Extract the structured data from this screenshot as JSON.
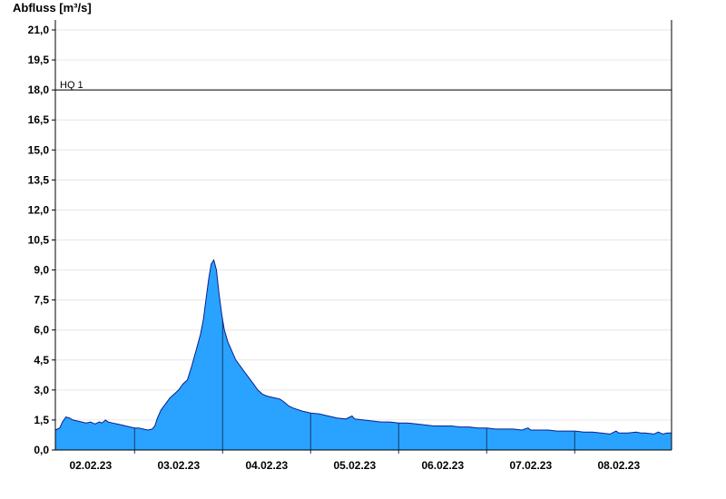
{
  "chart_data": {
    "type": "area",
    "title": "",
    "ylabel": "Abfluss [m³/s]",
    "xlabel": "",
    "ylim": [
      0,
      21.5
    ],
    "yticks": [
      "0,0",
      "1,5",
      "3,0",
      "4,5",
      "6,0",
      "7,5",
      "9,0",
      "10,5",
      "12,0",
      "13,5",
      "15,0",
      "16,5",
      "18,0",
      "19,5",
      "21,0"
    ],
    "yticks_values": [
      0,
      1.5,
      3,
      4.5,
      6,
      7.5,
      9,
      10.5,
      12,
      13.5,
      15,
      16.5,
      18,
      19.5,
      21
    ],
    "xlim_days": [
      1.6,
      8.6
    ],
    "xticks": [
      {
        "label": "02.02.23",
        "day": 2.0
      },
      {
        "label": "03.02.23",
        "day": 3.0
      },
      {
        "label": "04.02.23",
        "day": 4.0
      },
      {
        "label": "05.02.23",
        "day": 5.0
      },
      {
        "label": "06.02.23",
        "day": 6.0
      },
      {
        "label": "07.02.23",
        "day": 7.0
      },
      {
        "label": "08.02.23",
        "day": 8.0
      }
    ],
    "day_separators": [
      2.5,
      3.5,
      4.5,
      5.5,
      6.5,
      7.5
    ],
    "grid": true,
    "reference_line": {
      "label": "HQ 1",
      "value": 18.0
    },
    "series": [
      {
        "fill_color": "#29a3ff",
        "line_color": "#0a1f8f",
        "points": [
          [
            1.6,
            1.0
          ],
          [
            1.65,
            1.1
          ],
          [
            1.68,
            1.4
          ],
          [
            1.72,
            1.65
          ],
          [
            1.76,
            1.6
          ],
          [
            1.8,
            1.5
          ],
          [
            1.85,
            1.45
          ],
          [
            1.9,
            1.4
          ],
          [
            1.95,
            1.35
          ],
          [
            2.0,
            1.4
          ],
          [
            2.05,
            1.3
          ],
          [
            2.1,
            1.4
          ],
          [
            2.13,
            1.35
          ],
          [
            2.17,
            1.5
          ],
          [
            2.2,
            1.4
          ],
          [
            2.25,
            1.35
          ],
          [
            2.3,
            1.3
          ],
          [
            2.35,
            1.25
          ],
          [
            2.4,
            1.2
          ],
          [
            2.45,
            1.15
          ],
          [
            2.5,
            1.1
          ],
          [
            2.55,
            1.1
          ],
          [
            2.6,
            1.05
          ],
          [
            2.65,
            1.0
          ],
          [
            2.7,
            1.05
          ],
          [
            2.73,
            1.2
          ],
          [
            2.76,
            1.6
          ],
          [
            2.8,
            2.0
          ],
          [
            2.85,
            2.3
          ],
          [
            2.9,
            2.6
          ],
          [
            2.95,
            2.8
          ],
          [
            3.0,
            3.0
          ],
          [
            3.05,
            3.3
          ],
          [
            3.1,
            3.5
          ],
          [
            3.15,
            4.2
          ],
          [
            3.2,
            5.0
          ],
          [
            3.25,
            5.8
          ],
          [
            3.28,
            6.5
          ],
          [
            3.31,
            7.5
          ],
          [
            3.34,
            8.5
          ],
          [
            3.37,
            9.3
          ],
          [
            3.4,
            9.5
          ],
          [
            3.43,
            9.0
          ],
          [
            3.46,
            7.8
          ],
          [
            3.49,
            6.8
          ],
          [
            3.52,
            6.0
          ],
          [
            3.56,
            5.4
          ],
          [
            3.6,
            5.0
          ],
          [
            3.65,
            4.5
          ],
          [
            3.7,
            4.2
          ],
          [
            3.75,
            3.9
          ],
          [
            3.8,
            3.6
          ],
          [
            3.85,
            3.3
          ],
          [
            3.9,
            3.0
          ],
          [
            3.95,
            2.8
          ],
          [
            4.0,
            2.7
          ],
          [
            4.05,
            2.65
          ],
          [
            4.1,
            2.6
          ],
          [
            4.15,
            2.55
          ],
          [
            4.2,
            2.4
          ],
          [
            4.25,
            2.2
          ],
          [
            4.3,
            2.1
          ],
          [
            4.4,
            1.95
          ],
          [
            4.5,
            1.85
          ],
          [
            4.6,
            1.8
          ],
          [
            4.7,
            1.7
          ],
          [
            4.8,
            1.6
          ],
          [
            4.9,
            1.55
          ],
          [
            4.97,
            1.7
          ],
          [
            5.0,
            1.55
          ],
          [
            5.1,
            1.5
          ],
          [
            5.2,
            1.45
          ],
          [
            5.3,
            1.4
          ],
          [
            5.4,
            1.4
          ],
          [
            5.5,
            1.35
          ],
          [
            5.6,
            1.35
          ],
          [
            5.7,
            1.3
          ],
          [
            5.8,
            1.25
          ],
          [
            5.9,
            1.2
          ],
          [
            6.0,
            1.2
          ],
          [
            6.1,
            1.2
          ],
          [
            6.2,
            1.15
          ],
          [
            6.3,
            1.15
          ],
          [
            6.4,
            1.1
          ],
          [
            6.5,
            1.1
          ],
          [
            6.6,
            1.05
          ],
          [
            6.7,
            1.05
          ],
          [
            6.8,
            1.05
          ],
          [
            6.9,
            1.0
          ],
          [
            6.97,
            1.1
          ],
          [
            7.0,
            1.0
          ],
          [
            7.1,
            1.0
          ],
          [
            7.2,
            1.0
          ],
          [
            7.3,
            0.95
          ],
          [
            7.4,
            0.95
          ],
          [
            7.5,
            0.95
          ],
          [
            7.6,
            0.9
          ],
          [
            7.7,
            0.9
          ],
          [
            7.8,
            0.85
          ],
          [
            7.9,
            0.8
          ],
          [
            7.97,
            0.95
          ],
          [
            8.0,
            0.85
          ],
          [
            8.1,
            0.85
          ],
          [
            8.2,
            0.9
          ],
          [
            8.25,
            0.85
          ],
          [
            8.3,
            0.85
          ],
          [
            8.4,
            0.8
          ],
          [
            8.45,
            0.9
          ],
          [
            8.5,
            0.8
          ],
          [
            8.55,
            0.85
          ],
          [
            8.6,
            0.85
          ]
        ]
      }
    ]
  }
}
